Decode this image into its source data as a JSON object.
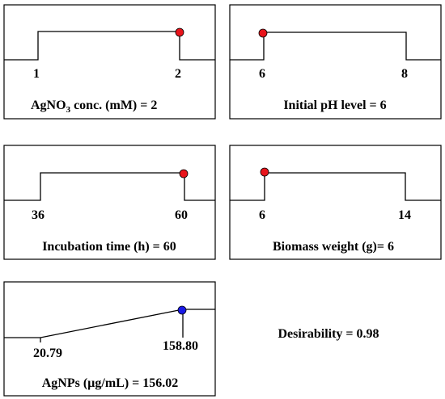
{
  "panels": [
    {
      "id": "agno3",
      "shape": "step",
      "low_tick": "1",
      "high_tick": "2",
      "label_main": "AgNO",
      "label_sub": "3",
      "label_rest": " conc. (mM) = 2",
      "marker": "high",
      "marker_color": "#e8141b"
    },
    {
      "id": "ph",
      "shape": "step",
      "low_tick": "6",
      "high_tick": "8",
      "label_main": "Initial pH level = 6",
      "marker": "low",
      "marker_color": "#e8141b"
    },
    {
      "id": "incubation",
      "shape": "step",
      "low_tick": "36",
      "high_tick": "60",
      "label_main": "Incubation time (h) = 60",
      "marker": "high",
      "marker_color": "#e8141b"
    },
    {
      "id": "biomass",
      "shape": "step",
      "low_tick": "6",
      "high_tick": "14",
      "label_main": "Biomass weight (g)= 6",
      "marker": "low",
      "marker_color": "#e8141b"
    },
    {
      "id": "agnps",
      "shape": "ramp",
      "low_tick": "20.79",
      "high_tick": "158.80",
      "label_main": "AgNPs (µg/mL) = 156.02",
      "marker": "high",
      "marker_color": "#1a1ae6"
    }
  ],
  "desirability": "Desirability = 0.98"
}
